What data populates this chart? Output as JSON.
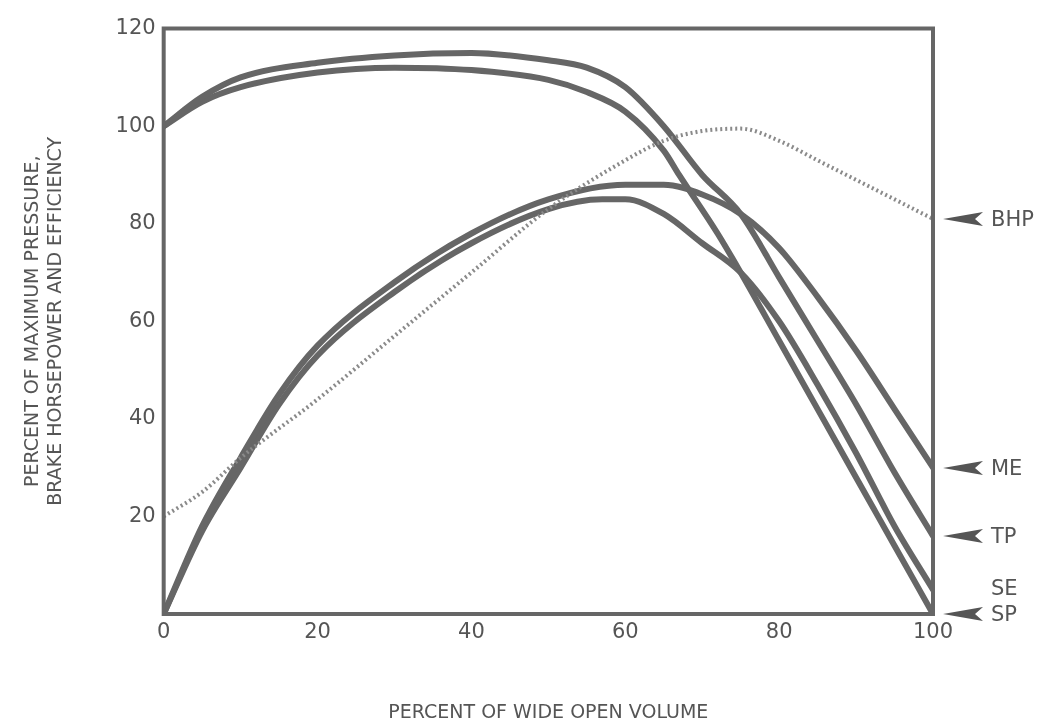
{
  "chart_data": {
    "type": "line",
    "xlabel": "PERCENT OF WIDE OPEN VOLUME",
    "ylabel": "PERCENT OF MAXIMUM PRESSURE,\nBRAKE HORSEPOWER AND EFFICIENCY",
    "xlim": [
      0,
      100
    ],
    "ylim": [
      0,
      120
    ],
    "xticks": [
      0,
      20,
      40,
      60,
      80,
      100
    ],
    "yticks": [
      20,
      40,
      60,
      80,
      100,
      120
    ],
    "grid": false,
    "legend": false,
    "marker": "none",
    "series": [
      {
        "name": "BHP",
        "color": "#8a8a8a",
        "line_style": "dotted",
        "x": [
          0,
          5,
          10,
          20,
          30,
          40,
          50,
          60,
          65,
          70,
          75,
          80,
          85,
          90,
          95,
          100
        ],
        "values": [
          20,
          25,
          32,
          44,
          57,
          70,
          83,
          93,
          97,
          99,
          99.5,
          97,
          93,
          89,
          85,
          81
        ]
      },
      {
        "name": "ME",
        "color": "#666666",
        "line_style": "solid",
        "x": [
          0,
          5,
          10,
          15,
          20,
          30,
          40,
          50,
          60,
          65,
          70,
          75,
          80,
          85,
          90,
          95,
          100
        ],
        "values": [
          0,
          18,
          32,
          45,
          55,
          68,
          78,
          85,
          88,
          88,
          86,
          82,
          75,
          65,
          54,
          42,
          30
        ]
      },
      {
        "name": "TP",
        "color": "#666666",
        "line_style": "solid",
        "x": [
          0,
          5,
          10,
          20,
          30,
          40,
          50,
          55,
          60,
          65,
          70,
          75,
          80,
          85,
          90,
          95,
          100
        ],
        "values": [
          100,
          106,
          110,
          113,
          114.5,
          115,
          113.5,
          112,
          108,
          100,
          90,
          82,
          69,
          56,
          43,
          29,
          16
        ]
      },
      {
        "name": "SE",
        "color": "#666666",
        "line_style": "solid",
        "x": [
          0,
          5,
          10,
          15,
          20,
          30,
          40,
          50,
          57,
          60,
          65,
          70,
          75,
          80,
          85,
          90,
          95,
          100
        ],
        "values": [
          0,
          17,
          30,
          43,
          53,
          66,
          76,
          83,
          85,
          85,
          82,
          76,
          70,
          60,
          47,
          33,
          18,
          5
        ]
      },
      {
        "name": "SP",
        "color": "#666666",
        "line_style": "solid",
        "x": [
          0,
          5,
          10,
          20,
          30,
          40,
          50,
          55,
          60,
          65,
          67,
          72,
          75,
          80,
          85,
          90,
          95,
          100
        ],
        "values": [
          100,
          105,
          108,
          111,
          112,
          111.5,
          109.5,
          107,
          103,
          95,
          90,
          78,
          70,
          56,
          42,
          28,
          14,
          0
        ]
      }
    ]
  }
}
